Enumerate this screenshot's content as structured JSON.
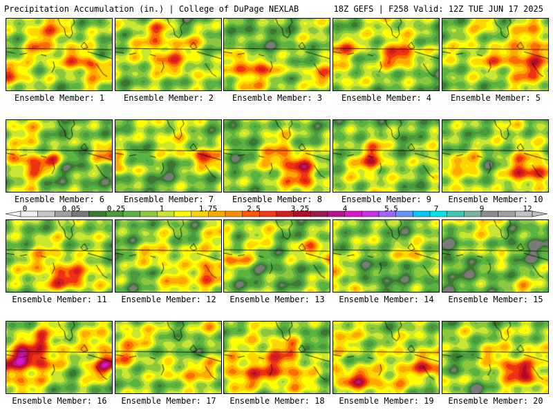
{
  "header": {
    "left": "Precipitation Accumulation (in.) | College of DuPage NEXLAB",
    "right": "18Z GEFS | F258 Valid: 12Z TUE JUN 17 2025"
  },
  "colorbar": {
    "tick_labels": [
      "0",
      "0.05",
      "0.25",
      "1",
      "1.75",
      "2.5",
      "3.25",
      "4",
      "5.5",
      "7",
      "9",
      "12"
    ],
    "colors": [
      "#f0f0f0",
      "#c8c8c8",
      "#a0a0a0",
      "#787878",
      "#3c7832",
      "#4b9b3c",
      "#5ab441",
      "#8cc83c",
      "#c8e632",
      "#ffff00",
      "#ffd700",
      "#ffaa00",
      "#ff8c00",
      "#ff5a00",
      "#f03c14",
      "#d21e1e",
      "#b40a28",
      "#961e50",
      "#b4148c",
      "#dc14c8",
      "#c832e6",
      "#a064ff",
      "#6496ff",
      "#00c8ff",
      "#00e6e6",
      "#3cc8b4",
      "#78b4a0",
      "#8c8c8c",
      "#a0a0a0",
      "#c0c0c0"
    ]
  },
  "members": [
    {
      "label": "Ensemble Member: 1"
    },
    {
      "label": "Ensemble Member: 2"
    },
    {
      "label": "Ensemble Member: 3"
    },
    {
      "label": "Ensemble Member: 4"
    },
    {
      "label": "Ensemble Member: 5"
    },
    {
      "label": "Ensemble Member: 6"
    },
    {
      "label": "Ensemble Member: 7"
    },
    {
      "label": "Ensemble Member: 8"
    },
    {
      "label": "Ensemble Member: 9"
    },
    {
      "label": "Ensemble Member: 10"
    },
    {
      "label": "Ensemble Member: 11"
    },
    {
      "label": "Ensemble Member: 12"
    },
    {
      "label": "Ensemble Member: 13"
    },
    {
      "label": "Ensemble Member: 14"
    },
    {
      "label": "Ensemble Member: 15"
    },
    {
      "label": "Ensemble Member: 16"
    },
    {
      "label": "Ensemble Member: 17"
    },
    {
      "label": "Ensemble Member: 18"
    },
    {
      "label": "Ensemble Member: 19"
    },
    {
      "label": "Ensemble Member: 20"
    }
  ]
}
